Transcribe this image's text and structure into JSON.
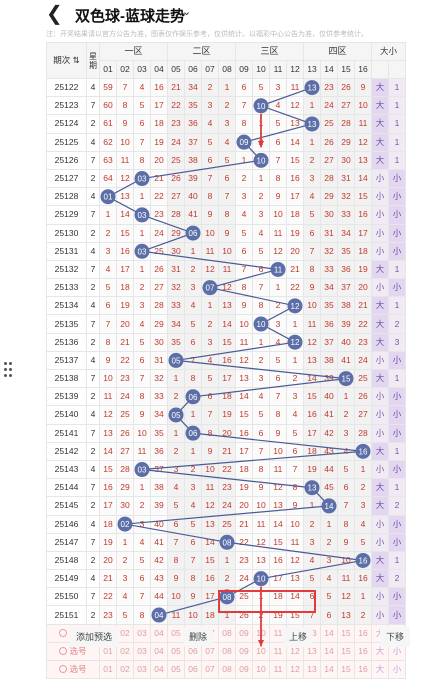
{
  "header": {
    "title": "双色球-蓝球走势",
    "back_icon": "back-chevron-icon",
    "dropdown_icon": "chevron-down-icon"
  },
  "notice": "注：开奖结果请以官方公告为准，图表仅作娱乐参考，仅供统计。以福彩中心公告为准，仅供参考统计。",
  "table_header": {
    "issue": "期次",
    "sum": "星期",
    "zones": [
      "一区",
      "二区",
      "三区",
      "四区"
    ],
    "size": "大小",
    "numbers": [
      "01",
      "02",
      "03",
      "04",
      "05",
      "06",
      "07",
      "08",
      "09",
      "10",
      "11",
      "12",
      "13",
      "14",
      "15",
      "16"
    ]
  },
  "rows": [
    {
      "issue": "25122",
      "w": "4",
      "cells": [
        "59",
        "7",
        "4",
        "16",
        "21",
        "34",
        "2",
        "1",
        "6",
        "5",
        "3",
        "11",
        "13",
        "23",
        "26",
        "9"
      ],
      "hit": 13,
      "size": "大",
      "x": "1"
    },
    {
      "issue": "25123",
      "w": "7",
      "cells": [
        "60",
        "8",
        "5",
        "17",
        "22",
        "35",
        "3",
        "2",
        "7",
        "10",
        "4",
        "12",
        "1",
        "24",
        "27",
        "10"
      ],
      "hit": 10,
      "size": "大",
      "x": "1"
    },
    {
      "issue": "25124",
      "w": "2",
      "cells": [
        "61",
        "9",
        "6",
        "18",
        "23",
        "36",
        "4",
        "3",
        "8",
        "1",
        "5",
        "13",
        "13",
        "25",
        "28",
        "11"
      ],
      "hit": 13,
      "size": "大",
      "x": "1"
    },
    {
      "issue": "25125",
      "w": "4",
      "cells": [
        "62",
        "10",
        "7",
        "19",
        "24",
        "37",
        "5",
        "4",
        "09",
        "2",
        "6",
        "14",
        "1",
        "26",
        "29",
        "12"
      ],
      "hit": 9,
      "size": "大",
      "x": "1"
    },
    {
      "issue": "25126",
      "w": "7",
      "cells": [
        "63",
        "11",
        "8",
        "20",
        "25",
        "38",
        "6",
        "5",
        "1",
        "10",
        "7",
        "15",
        "2",
        "27",
        "30",
        "13"
      ],
      "hit": 10,
      "size": "大",
      "x": "1"
    },
    {
      "issue": "25127",
      "w": "2",
      "cells": [
        "64",
        "12",
        "03",
        "21",
        "26",
        "39",
        "7",
        "6",
        "2",
        "1",
        "8",
        "16",
        "3",
        "28",
        "31",
        "14"
      ],
      "hit": 3,
      "size": "小",
      "x": "1"
    },
    {
      "issue": "25128",
      "w": "4",
      "cells": [
        "01",
        "13",
        "1",
        "22",
        "27",
        "40",
        "8",
        "7",
        "3",
        "2",
        "9",
        "17",
        "4",
        "29",
        "32",
        "15"
      ],
      "hit": 1,
      "size": "小",
      "x": "2"
    },
    {
      "issue": "25129",
      "w": "7",
      "cells": [
        "1",
        "14",
        "03",
        "23",
        "28",
        "41",
        "9",
        "8",
        "4",
        "3",
        "10",
        "18",
        "5",
        "30",
        "33",
        "16"
      ],
      "hit": 3,
      "size": "小",
      "x": "3"
    },
    {
      "issue": "25130",
      "w": "2",
      "cells": [
        "2",
        "15",
        "1",
        "24",
        "29",
        "06",
        "10",
        "9",
        "5",
        "4",
        "11",
        "19",
        "6",
        "31",
        "34",
        "17"
      ],
      "hit": 6,
      "size": "小",
      "x": "4"
    },
    {
      "issue": "25131",
      "w": "4",
      "cells": [
        "3",
        "16",
        "03",
        "25",
        "30",
        "1",
        "11",
        "10",
        "6",
        "5",
        "12",
        "20",
        "7",
        "32",
        "35",
        "18"
      ],
      "hit": 3,
      "size": "小",
      "x": "5"
    },
    {
      "issue": "25132",
      "w": "7",
      "cells": [
        "4",
        "17",
        "1",
        "26",
        "31",
        "2",
        "12",
        "11",
        "7",
        "6",
        "11",
        "21",
        "8",
        "33",
        "36",
        "19"
      ],
      "hit": 11,
      "size": "大",
      "x": "1"
    },
    {
      "issue": "25133",
      "w": "2",
      "cells": [
        "5",
        "18",
        "2",
        "27",
        "32",
        "3",
        "07",
        "12",
        "8",
        "7",
        "1",
        "22",
        "9",
        "34",
        "37",
        "20"
      ],
      "hit": 7,
      "size": "小",
      "x": "1"
    },
    {
      "issue": "25134",
      "w": "4",
      "cells": [
        "6",
        "19",
        "3",
        "28",
        "33",
        "4",
        "1",
        "13",
        "9",
        "8",
        "2",
        "12",
        "10",
        "35",
        "38",
        "21"
      ],
      "hit": 12,
      "size": "大",
      "x": "1"
    },
    {
      "issue": "25135",
      "w": "7",
      "cells": [
        "7",
        "20",
        "4",
        "29",
        "34",
        "5",
        "2",
        "14",
        "10",
        "10",
        "3",
        "1",
        "11",
        "36",
        "39",
        "22"
      ],
      "hit": 10,
      "size": "大",
      "x": "2"
    },
    {
      "issue": "25136",
      "w": "2",
      "cells": [
        "8",
        "21",
        "5",
        "30",
        "35",
        "6",
        "3",
        "15",
        "11",
        "1",
        "4",
        "12",
        "12",
        "37",
        "40",
        "23"
      ],
      "hit": 12,
      "size": "大",
      "x": "3"
    },
    {
      "issue": "25137",
      "w": "4",
      "cells": [
        "9",
        "22",
        "6",
        "31",
        "05",
        "7",
        "4",
        "16",
        "12",
        "2",
        "5",
        "1",
        "13",
        "38",
        "41",
        "24"
      ],
      "hit": 5,
      "size": "小",
      "x": "1"
    },
    {
      "issue": "25138",
      "w": "7",
      "cells": [
        "10",
        "23",
        "7",
        "32",
        "1",
        "8",
        "5",
        "17",
        "13",
        "3",
        "6",
        "2",
        "14",
        "39",
        "15",
        "25"
      ],
      "hit": 15,
      "size": "大",
      "x": "1"
    },
    {
      "issue": "25139",
      "w": "2",
      "cells": [
        "11",
        "24",
        "8",
        "33",
        "2",
        "06",
        "6",
        "18",
        "14",
        "4",
        "7",
        "3",
        "15",
        "40",
        "1",
        "26"
      ],
      "hit": 6,
      "size": "小",
      "x": "1"
    },
    {
      "issue": "25140",
      "w": "4",
      "cells": [
        "12",
        "25",
        "9",
        "34",
        "05",
        "1",
        "7",
        "19",
        "15",
        "5",
        "8",
        "4",
        "16",
        "41",
        "2",
        "27"
      ],
      "hit": 5,
      "size": "小",
      "x": "2"
    },
    {
      "issue": "25141",
      "w": "7",
      "cells": [
        "13",
        "26",
        "10",
        "35",
        "1",
        "06",
        "8",
        "20",
        "16",
        "6",
        "9",
        "5",
        "17",
        "42",
        "3",
        "28"
      ],
      "hit": 6,
      "size": "小",
      "x": "3"
    },
    {
      "issue": "25142",
      "w": "2",
      "cells": [
        "14",
        "27",
        "11",
        "36",
        "2",
        "1",
        "9",
        "21",
        "17",
        "7",
        "10",
        "6",
        "18",
        "43",
        "4",
        "16"
      ],
      "hit": 16,
      "size": "大",
      "x": "1"
    },
    {
      "issue": "25143",
      "w": "4",
      "cells": [
        "15",
        "28",
        "03",
        "37",
        "3",
        "2",
        "10",
        "22",
        "18",
        "8",
        "11",
        "7",
        "19",
        "44",
        "5",
        "1"
      ],
      "hit": 3,
      "size": "小",
      "x": "1"
    },
    {
      "issue": "25144",
      "w": "7",
      "cells": [
        "16",
        "29",
        "1",
        "38",
        "4",
        "3",
        "11",
        "23",
        "19",
        "9",
        "12",
        "8",
        "13",
        "45",
        "6",
        "2"
      ],
      "hit": 13,
      "size": "大",
      "x": "1"
    },
    {
      "issue": "25145",
      "w": "2",
      "cells": [
        "17",
        "30",
        "2",
        "39",
        "5",
        "4",
        "12",
        "24",
        "20",
        "10",
        "13",
        "9",
        "1",
        "14",
        "7",
        "3"
      ],
      "hit": 14,
      "size": "大",
      "x": "2"
    },
    {
      "issue": "25146",
      "w": "4",
      "cells": [
        "18",
        "02",
        "3",
        "40",
        "6",
        "5",
        "13",
        "25",
        "21",
        "11",
        "14",
        "10",
        "2",
        "1",
        "8",
        "4"
      ],
      "hit": 2,
      "size": "小",
      "x": "1"
    },
    {
      "issue": "25147",
      "w": "7",
      "cells": [
        "19",
        "1",
        "4",
        "41",
        "7",
        "6",
        "14",
        "08",
        "22",
        "12",
        "15",
        "11",
        "3",
        "2",
        "9",
        "5"
      ],
      "hit": 8,
      "size": "小",
      "x": "2"
    },
    {
      "issue": "25148",
      "w": "2",
      "cells": [
        "20",
        "2",
        "5",
        "42",
        "8",
        "7",
        "15",
        "1",
        "23",
        "13",
        "16",
        "12",
        "4",
        "3",
        "10",
        "16"
      ],
      "hit": 16,
      "size": "大",
      "x": "1"
    },
    {
      "issue": "25149",
      "w": "4",
      "cells": [
        "21",
        "3",
        "6",
        "43",
        "9",
        "8",
        "16",
        "2",
        "24",
        "10",
        "17",
        "13",
        "5",
        "4",
        "11",
        "16"
      ],
      "hit": 10,
      "size": "大",
      "x": "2"
    },
    {
      "issue": "25150",
      "w": "7",
      "cells": [
        "22",
        "4",
        "7",
        "44",
        "10",
        "9",
        "17",
        "08",
        "25",
        "1",
        "18",
        "14",
        "6",
        "5",
        "12",
        "1"
      ],
      "hit": 8,
      "size": "小",
      "x": "1"
    },
    {
      "issue": "25151",
      "w": "2",
      "cells": [
        "23",
        "5",
        "8",
        "04",
        "11",
        "10",
        "18",
        "1",
        "26",
        "2",
        "19",
        "15",
        "7",
        "6",
        "13",
        "2"
      ],
      "hit": 4,
      "size": "小",
      "x": "2"
    }
  ],
  "select_rows": {
    "label": "选号",
    "numbers": [
      "01",
      "02",
      "03",
      "04",
      "05",
      "06",
      "07",
      "08",
      "09",
      "10",
      "11",
      "12",
      "13",
      "14",
      "15",
      "16"
    ],
    "size": [
      "大",
      "小"
    ]
  },
  "controls": {
    "add": "添加预选",
    "delete": "删除",
    "up": "上移",
    "down": "下移"
  },
  "colors": {
    "ball": "#5b6ea7",
    "line": "#4a5b93",
    "arrow": "#e23b3b",
    "big": "#e3d6f1"
  }
}
